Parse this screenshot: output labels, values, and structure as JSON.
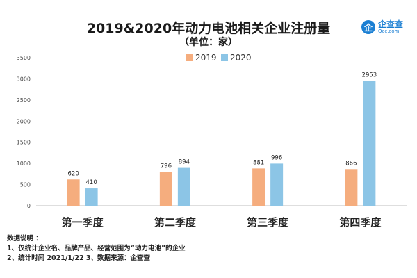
{
  "header": {
    "title": "2019&2020年动力电池相关企业注册量",
    "subtitle": "（单位：家）"
  },
  "logo": {
    "icon_char": "企",
    "name": "企查查",
    "domain": "Qcc.com",
    "color": "#1b7fd3"
  },
  "chart_data": {
    "type": "bar",
    "categories": [
      "第一季度",
      "第二季度",
      "第三季度",
      "第四季度"
    ],
    "series": [
      {
        "name": "2019",
        "values": [
          620,
          796,
          881,
          866
        ],
        "color": "#f5ad7e"
      },
      {
        "name": "2020",
        "values": [
          410,
          894,
          996,
          2953
        ],
        "color": "#8cc5e6"
      }
    ],
    "yticks": [
      0,
      500,
      1000,
      1500,
      2000,
      2500,
      3000,
      3500
    ],
    "ylim": [
      0,
      3500
    ],
    "grid": false,
    "legend": "top-center",
    "data_labels": true
  },
  "notes": {
    "heading": "数据说明 ：",
    "line1": "1、仅统计企业名、品牌产品、经营范围为“动力电池”的企业",
    "line2": "2、统计时间 2021/1/22   3、数据来源：企查查"
  }
}
